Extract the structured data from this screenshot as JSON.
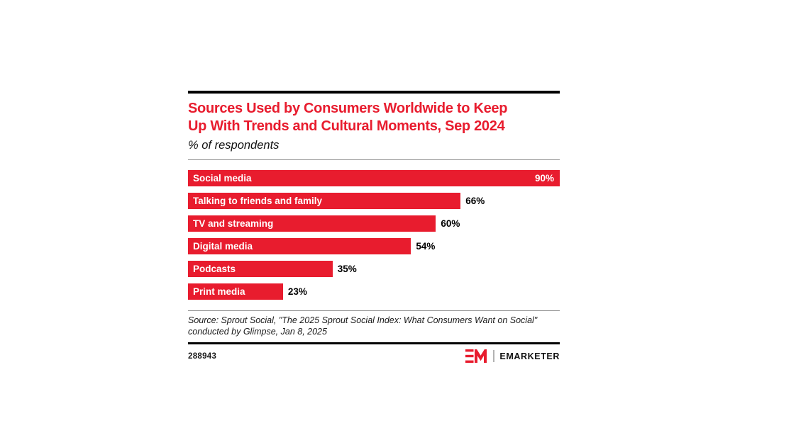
{
  "brand": {
    "red": "#e81c2e",
    "black": "#000000"
  },
  "chart": {
    "title_lines": [
      "Sources Used by Consumers Worldwide to Keep",
      "Up With Trends and Cultural Moments, Sep 2024"
    ],
    "subtitle": "% of respondents"
  },
  "chart_data": {
    "type": "bar",
    "orientation": "horizontal",
    "title": "Sources Used by Consumers Worldwide to Keep Up With Trends and Cultural Moments, Sep 2024",
    "subtitle": "% of respondents",
    "categories": [
      "Social media",
      "Talking to friends and family",
      "TV and streaming",
      "Digital media",
      "Podcasts",
      "Print media"
    ],
    "values": [
      90,
      66,
      60,
      54,
      35,
      23
    ],
    "unit": "%",
    "xlim": [
      0,
      90
    ],
    "bar_color": "#e81c2e",
    "grid": false,
    "value_labels": "end-of-bar, max value label inside bar in white"
  },
  "source": {
    "text": "Source: Sprout Social, \"The 2025 Sprout Social Index: What Consumers Want on Social\" conducted by Glimpse, Jan 8, 2025"
  },
  "footer": {
    "chart_id": "288943",
    "logo_monogram": "EM",
    "logo_text": "EMARKETER"
  }
}
